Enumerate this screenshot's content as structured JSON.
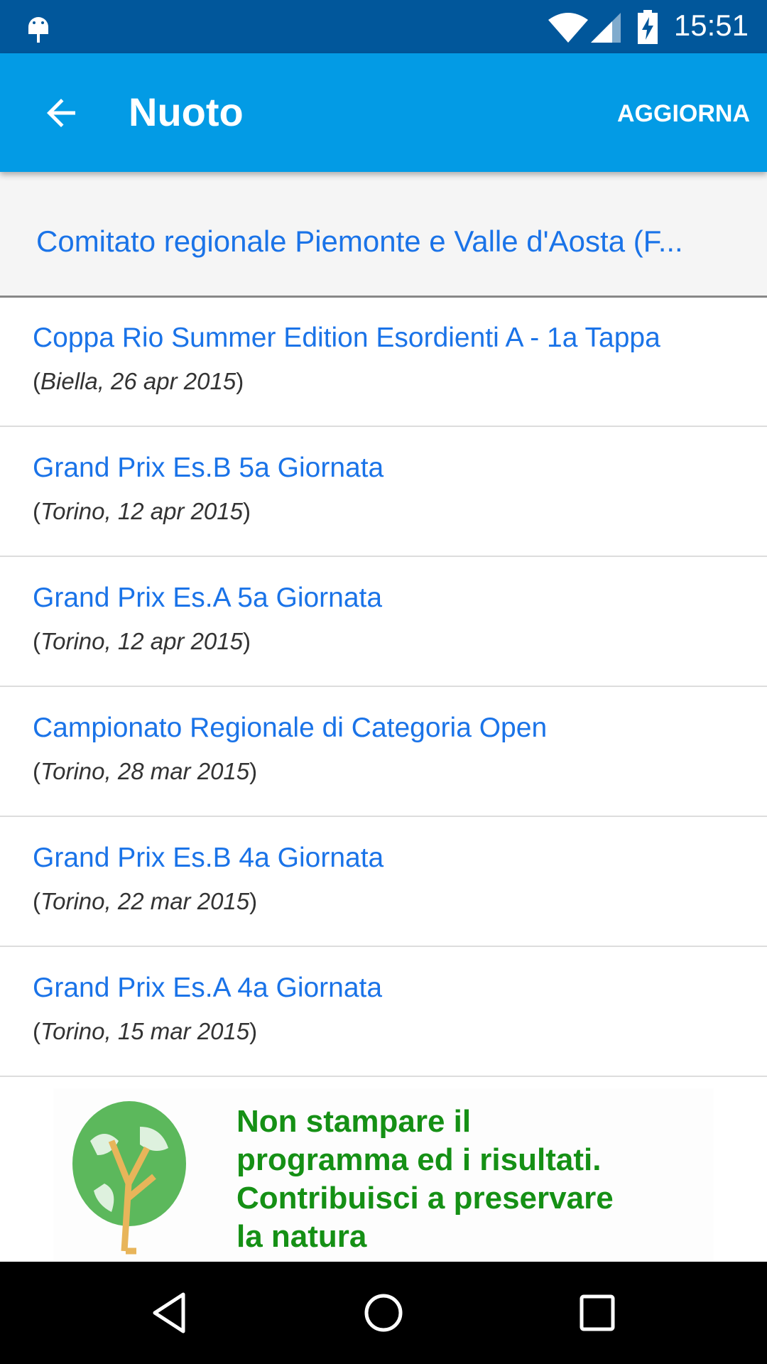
{
  "status_bar": {
    "time": "15:51",
    "icons": [
      "android-debug-icon",
      "wifi-icon",
      "signal-icon",
      "battery-charging-icon"
    ]
  },
  "app_bar": {
    "title": "Nuoto",
    "action": "AGGIORNA"
  },
  "header": {
    "text": "Comitato regionale Piemonte e Valle d'Aosta (F..."
  },
  "events": [
    {
      "title": "Coppa Rio Summer Edition Esordienti A - 1a Tappa",
      "details": "Biella, 26 apr 2015"
    },
    {
      "title": "Grand Prix Es.B 5a Giornata",
      "details": "Torino, 12 apr 2015"
    },
    {
      "title": "Grand Prix Es.A 5a Giornata",
      "details": "Torino, 12 apr 2015"
    },
    {
      "title": "Campionato Regionale di Categoria Open",
      "details": "Torino, 28 mar 2015"
    },
    {
      "title": "Grand Prix Es.B 4a Giornata",
      "details": "Torino, 22 mar 2015"
    },
    {
      "title": "Grand Prix Es.A 4a Giornata",
      "details": "Torino, 15 mar 2015"
    }
  ],
  "banner": {
    "lines": [
      "Non stampare il",
      "programma ed i risultati.",
      "Contribuisci a preservare",
      "la natura"
    ]
  },
  "colors": {
    "status_bar": "#01579b",
    "app_bar": "#039be5",
    "link": "#1a73e8",
    "banner_text": "#159015"
  }
}
